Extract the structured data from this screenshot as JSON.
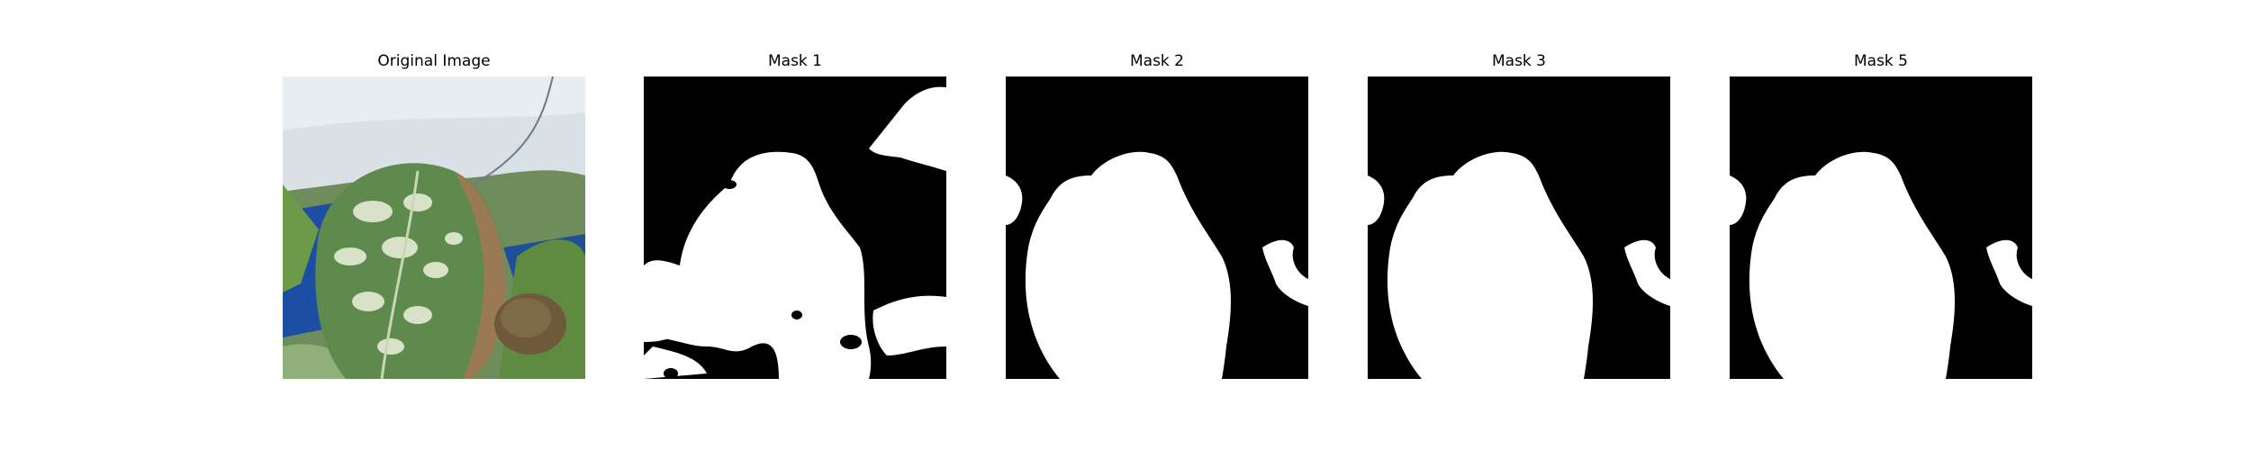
{
  "figure": {
    "panels": [
      {
        "title": "Original Image",
        "kind": "photo"
      },
      {
        "title": "Mask 1",
        "kind": "mask"
      },
      {
        "title": "Mask 2",
        "kind": "mask"
      },
      {
        "title": "Mask 3",
        "kind": "mask"
      },
      {
        "title": "Mask 5",
        "kind": "mask"
      }
    ]
  },
  "colors": {
    "background": "#ffffff",
    "mask_background": "#000000",
    "mask_foreground": "#ffffff",
    "pot_white": "#d9e1e6",
    "leaf_green": "#5f8a4e",
    "leaf_variegation": "#d8e2c8",
    "background_blue": "#1c4ea3",
    "dry_edge_brown": "#9a7a52"
  }
}
